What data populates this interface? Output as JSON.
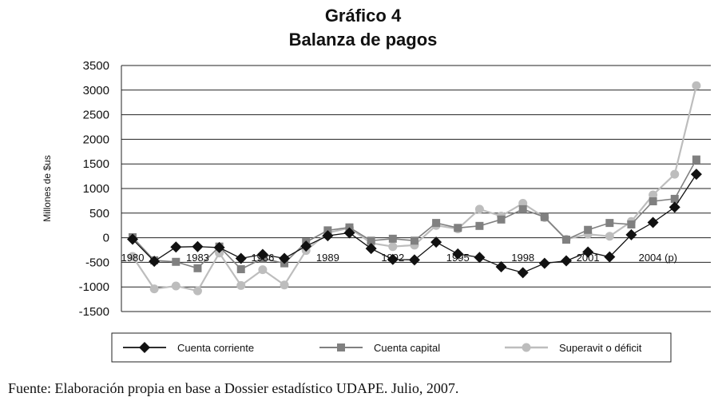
{
  "title": "Gráfico 4",
  "subtitle": "Balanza de pagos",
  "source": "Fuente: Elaboración propia en base a Dossier estadístico UDAPE. Julio, 2007.",
  "colors": {
    "cuenta_corriente": "#111111",
    "cuenta_capital": "#808080",
    "superavit": "#bdbdbd",
    "grid": "#222222"
  },
  "chart_data": {
    "type": "line",
    "title": "Gráfico 4",
    "subtitle": "Balanza de pagos",
    "ylabel": "Millones de $us",
    "xlabel": "",
    "ylim": [
      -1500,
      3500
    ],
    "yticks": [
      3500,
      3000,
      2500,
      2000,
      1500,
      1000,
      500,
      0,
      -500,
      -1000,
      -1500
    ],
    "grid": true,
    "legend_position": "bottom",
    "x": [
      1980,
      1981,
      1982,
      1983,
      1984,
      1985,
      1986,
      1987,
      1988,
      1989,
      1990,
      1991,
      1992,
      1993,
      1994,
      1995,
      1996,
      1997,
      1998,
      1999,
      2000,
      2001,
      2002,
      2003,
      2004,
      2005,
      2006
    ],
    "xtick_labels": [
      "1980",
      "1983",
      "1986",
      "1989",
      "1992",
      "1995",
      "1998",
      "2001",
      "2004 (p)"
    ],
    "xtick_positions": [
      1980,
      1983,
      1986,
      1989,
      1992,
      1995,
      1998,
      2001,
      2004
    ],
    "series": [
      {
        "name": "Cuenta corriente",
        "marker": "diamond",
        "values": [
          -30,
          -480,
          -190,
          -180,
          -200,
          -420,
          -340,
          -420,
          -170,
          40,
          100,
          -220,
          -440,
          -450,
          -90,
          -330,
          -400,
          -590,
          -710,
          -520,
          -470,
          -290,
          -390,
          60,
          310,
          620,
          1290
        ]
      },
      {
        "name": "Cuenta capital",
        "marker": "square",
        "values": [
          10,
          -460,
          -490,
          -620,
          -180,
          -640,
          -420,
          -520,
          -90,
          150,
          210,
          -60,
          -20,
          -60,
          300,
          200,
          240,
          370,
          580,
          420,
          -40,
          160,
          300,
          270,
          740,
          790,
          1590
        ]
      },
      {
        "name": "Superavit o déficit",
        "marker": "circle",
        "values": [
          -380,
          -1040,
          -980,
          -1080,
          -310,
          -970,
          -650,
          -960,
          -260,
          100,
          200,
          -110,
          -180,
          -150,
          250,
          180,
          580,
          440,
          700,
          410,
          -30,
          70,
          30,
          330,
          870,
          1290,
          3090
        ]
      }
    ]
  }
}
